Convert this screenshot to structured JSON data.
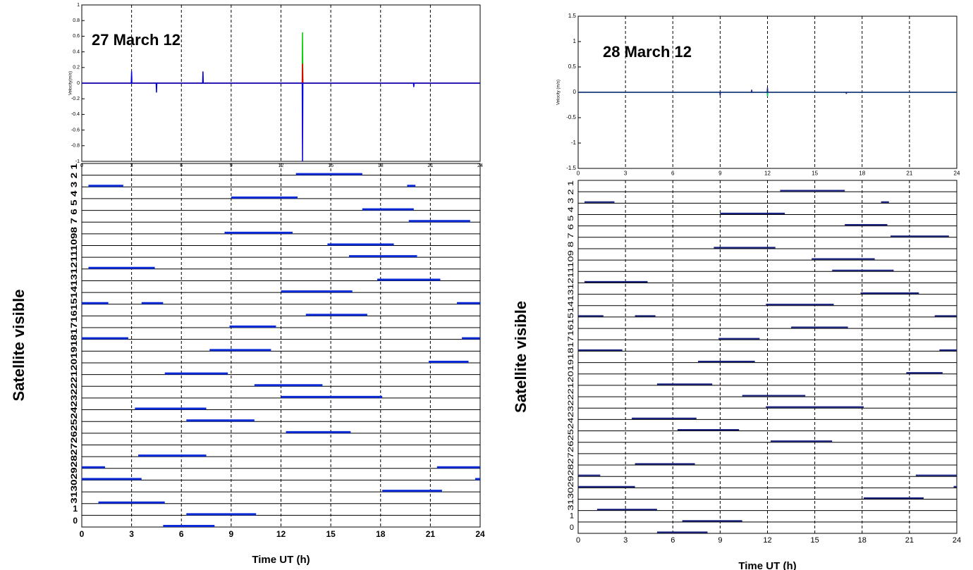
{
  "chart_data": [
    {
      "type": "line",
      "annotation": "27 March 12",
      "ylabel": "Velocity(m/s)",
      "grid": true,
      "xlim": [
        0,
        24
      ],
      "xticks": [
        0,
        3,
        6,
        9,
        12,
        15,
        18,
        21,
        24
      ],
      "ylim": [
        -1,
        1
      ],
      "yticks": [
        -1,
        -0.8,
        -0.6,
        -0.4,
        -0.2,
        0,
        0.2,
        0.4,
        0.6,
        0.8,
        1
      ],
      "series": [
        {
          "color": "#00cc00",
          "x": [
            0,
            13.28,
            13.3,
            13.32,
            24
          ],
          "values": [
            0,
            0,
            0.65,
            0,
            0
          ]
        },
        {
          "color": "#e00000",
          "x": [
            0,
            13.28,
            13.3,
            13.32,
            24
          ],
          "values": [
            0,
            0,
            0.25,
            0,
            0
          ]
        },
        {
          "color": "#0000dd",
          "x": [
            0,
            2.98,
            3,
            3.02,
            4.48,
            4.5,
            4.52,
            7.28,
            7.3,
            7.32,
            13.28,
            13.3,
            13.32,
            19.98,
            20,
            20.02,
            24
          ],
          "values": [
            0,
            0,
            0.15,
            0,
            0,
            -0.12,
            0,
            0,
            0.15,
            0,
            0,
            -1,
            0,
            0,
            -0.05,
            0,
            0
          ]
        }
      ]
    },
    {
      "type": "timeline",
      "color": "#0b2bd6",
      "xlabel": "Time UT (h)",
      "ylabel": "Satellite visible",
      "row_axis_text": "3130292827262524232221201918171615141312111098 7 6 5 4 3 2 1",
      "grid": true,
      "xlim": [
        0,
        24
      ],
      "xticks": [
        0,
        3,
        6,
        9,
        12,
        15,
        18,
        21,
        24
      ],
      "categories": [
        null,
        null,
        null,
        null,
        null,
        null,
        null,
        null,
        null,
        null,
        null,
        null,
        null,
        null,
        null,
        null,
        null,
        null,
        null,
        null,
        null,
        null,
        null,
        null,
        null,
        null,
        null,
        null,
        null,
        "1",
        "0"
      ],
      "segments": [
        {
          "row": 0,
          "start": 12.9,
          "end": 16.9
        },
        {
          "row": 1,
          "start": 0.4,
          "end": 2.5
        },
        {
          "row": 1,
          "start": 19.6,
          "end": 20.1
        },
        {
          "row": 2,
          "start": 9,
          "end": 13
        },
        {
          "row": 3,
          "start": 16.9,
          "end": 20
        },
        {
          "row": 4,
          "start": 19.7,
          "end": 23.4
        },
        {
          "row": 5,
          "start": 8.6,
          "end": 12.7
        },
        {
          "row": 6,
          "start": 14.8,
          "end": 18.8
        },
        {
          "row": 7,
          "start": 16.1,
          "end": 20.2
        },
        {
          "row": 8,
          "start": 0.4,
          "end": 4.4
        },
        {
          "row": 9,
          "start": 17.8,
          "end": 21.6
        },
        {
          "row": 10,
          "start": 12,
          "end": 16.3
        },
        {
          "row": 11,
          "start": 0,
          "end": 1.6
        },
        {
          "row": 11,
          "start": 3.6,
          "end": 4.9
        },
        {
          "row": 11,
          "start": 22.6,
          "end": 24
        },
        {
          "row": 12,
          "start": 13.5,
          "end": 17.2
        },
        {
          "row": 13,
          "start": 8.9,
          "end": 11.7
        },
        {
          "row": 14,
          "start": 0,
          "end": 2.8
        },
        {
          "row": 14,
          "start": 22.9,
          "end": 24
        },
        {
          "row": 15,
          "start": 7.7,
          "end": 11.4
        },
        {
          "row": 16,
          "start": 20.9,
          "end": 23.3
        },
        {
          "row": 17,
          "start": 5,
          "end": 8.8
        },
        {
          "row": 18,
          "start": 10.4,
          "end": 14.5
        },
        {
          "row": 19,
          "start": 12,
          "end": 18.1
        },
        {
          "row": 20,
          "start": 3.2,
          "end": 7.5
        },
        {
          "row": 21,
          "start": 6.3,
          "end": 10.4
        },
        {
          "row": 22,
          "start": 12.3,
          "end": 16.2
        },
        {
          "row": 24,
          "start": 3.4,
          "end": 7.5
        },
        {
          "row": 25,
          "start": 0,
          "end": 1.4
        },
        {
          "row": 25,
          "start": 21.4,
          "end": 24
        },
        {
          "row": 26,
          "start": 0,
          "end": 3.6
        },
        {
          "row": 26,
          "start": 23.7,
          "end": 24
        },
        {
          "row": 27,
          "start": 18.1,
          "end": 21.7
        },
        {
          "row": 28,
          "start": 1,
          "end": 5
        },
        {
          "row": 29,
          "start": 6.3,
          "end": 10.5
        },
        {
          "row": 30,
          "start": 4.9,
          "end": 8
        }
      ]
    },
    {
      "type": "line",
      "annotation": "28 March 12",
      "ylabel": "Velocity (m/s)",
      "grid": true,
      "xlim": [
        0,
        24
      ],
      "xticks": [
        0,
        3,
        6,
        9,
        12,
        15,
        18,
        21,
        24
      ],
      "ylim": [
        -1.5,
        1.5
      ],
      "yticks": [
        -1.5,
        -1,
        -0.5,
        0,
        0.5,
        1,
        1.5
      ],
      "series": [
        {
          "color": "#00cc66",
          "x": [
            0,
            11.98,
            12,
            12.02,
            24
          ],
          "values": [
            0,
            0,
            -0.08,
            0,
            0
          ]
        },
        {
          "color": "#1a237e",
          "x": [
            0,
            8.98,
            9,
            9.02,
            10.98,
            11,
            11.02,
            11.98,
            12,
            12.02,
            16.98,
            17,
            17.02,
            24
          ],
          "values": [
            0,
            0,
            -0.06,
            0,
            0,
            0.05,
            0,
            0,
            0.09,
            0,
            0,
            -0.03,
            0,
            0
          ]
        }
      ]
    },
    {
      "type": "timeline",
      "color": "#1a237e",
      "xlabel": "Time UT (h)",
      "ylabel": "Satellite visible",
      "row_axis_text": "313029282726252423222120191817161514131211109 8 7 6 5 4 3 2 1",
      "grid": true,
      "xlim": [
        0,
        24
      ],
      "xticks": [
        0,
        3,
        6,
        9,
        12,
        15,
        18,
        21,
        24
      ],
      "categories": [
        null,
        null,
        null,
        null,
        null,
        null,
        null,
        null,
        null,
        null,
        null,
        null,
        null,
        null,
        null,
        null,
        null,
        null,
        null,
        null,
        null,
        null,
        null,
        null,
        null,
        null,
        null,
        null,
        null,
        "1",
        "0"
      ],
      "segments": [
        {
          "row": 0,
          "start": 12.8,
          "end": 16.9
        },
        {
          "row": 1,
          "start": 0.4,
          "end": 2.3
        },
        {
          "row": 1,
          "start": 19.2,
          "end": 19.7
        },
        {
          "row": 2,
          "start": 9,
          "end": 13.1
        },
        {
          "row": 3,
          "start": 16.9,
          "end": 19.6
        },
        {
          "row": 4,
          "start": 19.8,
          "end": 23.5
        },
        {
          "row": 5,
          "start": 8.6,
          "end": 12.5
        },
        {
          "row": 6,
          "start": 14.8,
          "end": 18.8
        },
        {
          "row": 7,
          "start": 16.1,
          "end": 20
        },
        {
          "row": 8,
          "start": 0.4,
          "end": 4.4
        },
        {
          "row": 9,
          "start": 17.9,
          "end": 21.6
        },
        {
          "row": 10,
          "start": 11.9,
          "end": 16.2
        },
        {
          "row": 11,
          "start": 0,
          "end": 1.6
        },
        {
          "row": 11,
          "start": 3.6,
          "end": 4.9
        },
        {
          "row": 11,
          "start": 22.6,
          "end": 24
        },
        {
          "row": 12,
          "start": 13.5,
          "end": 17.1
        },
        {
          "row": 13,
          "start": 8.9,
          "end": 11.5
        },
        {
          "row": 14,
          "start": 0,
          "end": 2.8
        },
        {
          "row": 14,
          "start": 22.9,
          "end": 24
        },
        {
          "row": 15,
          "start": 7.6,
          "end": 11.2
        },
        {
          "row": 16,
          "start": 20.8,
          "end": 23.1
        },
        {
          "row": 17,
          "start": 5,
          "end": 8.5
        },
        {
          "row": 18,
          "start": 10.4,
          "end": 14.4
        },
        {
          "row": 19,
          "start": 11.9,
          "end": 18.1
        },
        {
          "row": 20,
          "start": 3.4,
          "end": 7.5
        },
        {
          "row": 21,
          "start": 6.3,
          "end": 10.2
        },
        {
          "row": 22,
          "start": 12.2,
          "end": 16.1
        },
        {
          "row": 24,
          "start": 3.6,
          "end": 7.4
        },
        {
          "row": 25,
          "start": 0,
          "end": 1.4
        },
        {
          "row": 25,
          "start": 21.4,
          "end": 24
        },
        {
          "row": 26,
          "start": 0,
          "end": 3.6
        },
        {
          "row": 26,
          "start": 23.8,
          "end": 24
        },
        {
          "row": 27,
          "start": 18.1,
          "end": 21.9
        },
        {
          "row": 28,
          "start": 1.2,
          "end": 5
        },
        {
          "row": 29,
          "start": 6.6,
          "end": 10.4
        },
        {
          "row": 30,
          "start": 5,
          "end": 8.2
        }
      ]
    }
  ]
}
